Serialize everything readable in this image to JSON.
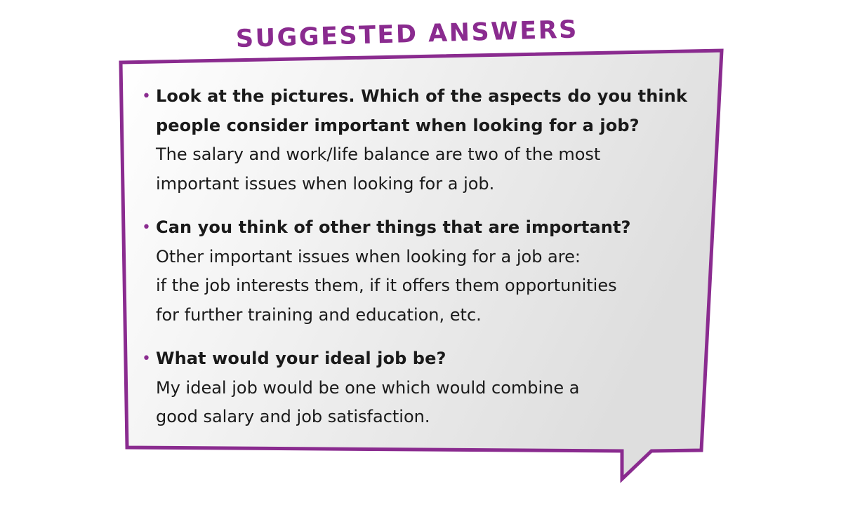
{
  "heading": "SUGGESTED ANSWERS",
  "colors": {
    "accent": "#8a2b8f",
    "text": "#1a1a1a",
    "bubble_fill_light": "#ffffff",
    "bubble_fill_dark": "#dedede"
  },
  "items": [
    {
      "question_lines": [
        "Look at the pictures. Which of the aspects do you think",
        "people consider important when looking for a job?"
      ],
      "answer_lines": [
        "The salary and work/life balance are two of the most",
        "important issues when looking for a job."
      ]
    },
    {
      "question_lines": [
        "Can you think of other things that are important?"
      ],
      "answer_lines": [
        "Other important issues when looking for a job are:",
        "if the job interests them, if it offers them opportunities",
        "for further training and education, etc."
      ]
    },
    {
      "question_lines": [
        "What would your ideal job be?"
      ],
      "answer_lines": [
        "My ideal job would be one which would combine a",
        "good salary and job satisfaction."
      ]
    }
  ]
}
